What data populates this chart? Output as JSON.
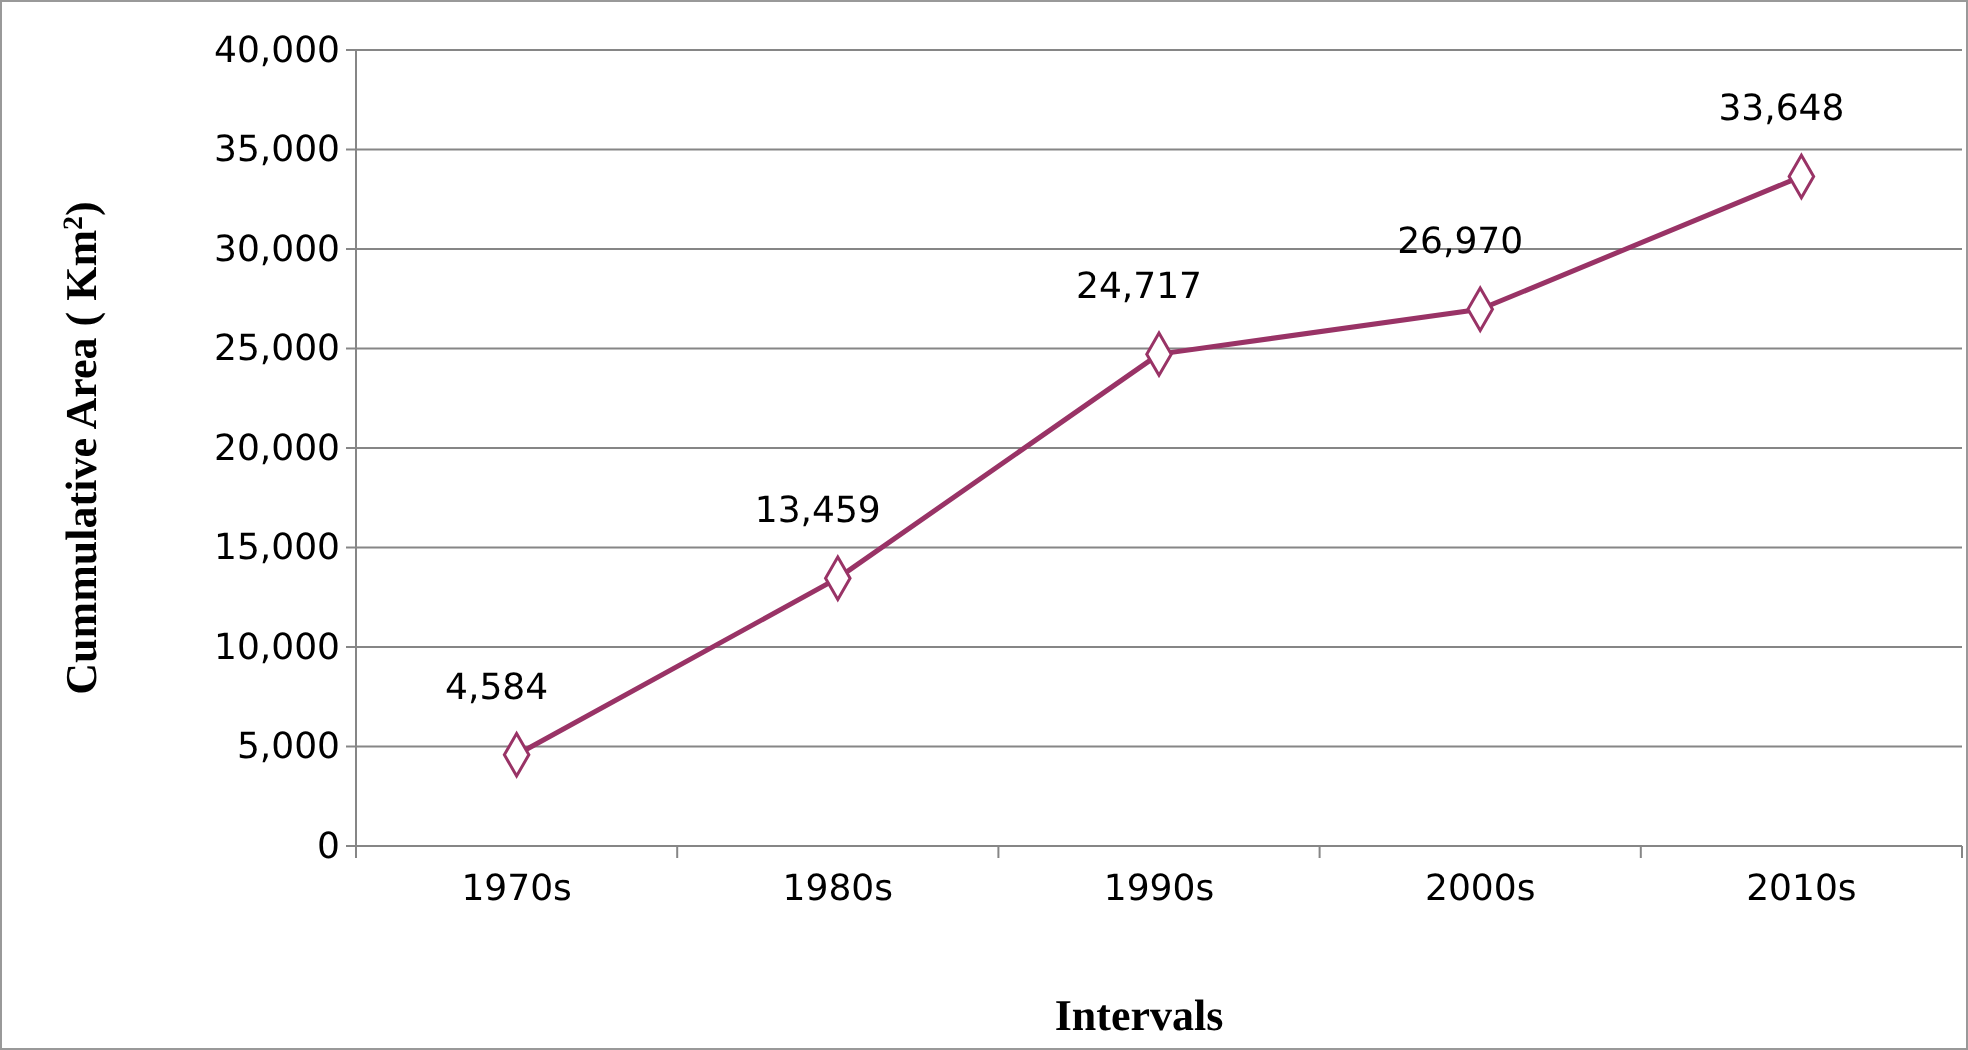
{
  "chart_data": {
    "type": "line",
    "xlabel": "Intervals",
    "ylabel": "Cummulative Area ( Km$^{2}$)",
    "categories": [
      "1970s",
      "1980s",
      "1990s",
      "2000s",
      "2010s"
    ],
    "series": [
      {
        "color": "#993366",
        "values": [
          4584,
          13459,
          24717,
          26970,
          33648
        ],
        "value_labels": [
          "4,584",
          "13,459",
          "24,717",
          "26,970",
          "33,648"
        ]
      }
    ],
    "ylim": [
      0,
      40000
    ],
    "yticks": [
      {
        "value": 0,
        "label": "0"
      },
      {
        "value": 5000,
        "label": "5,000"
      },
      {
        "value": 10000,
        "label": "10,000"
      },
      {
        "value": 15000,
        "label": "15,000"
      },
      {
        "value": 20000,
        "label": "20,000"
      },
      {
        "value": 25000,
        "label": "25,000"
      },
      {
        "value": 30000,
        "label": "30,000"
      },
      {
        "value": 35000,
        "label": "35,000"
      },
      {
        "value": 40000,
        "label": "40,000"
      }
    ],
    "grid": "y",
    "marker": "diamond",
    "line_style": "solid"
  }
}
